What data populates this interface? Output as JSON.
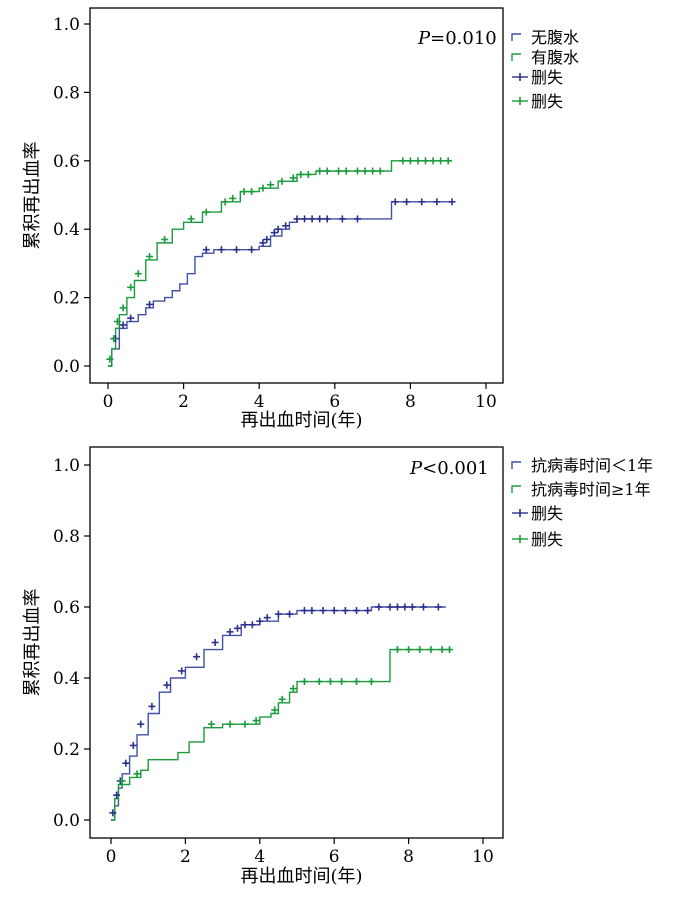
{
  "chart_data": [
    {
      "type": "line",
      "title": "",
      "xlabel": "再出血时间(年)",
      "ylabel": "累积再出血率",
      "xlim": [
        0,
        10
      ],
      "ylim": [
        0,
        1
      ],
      "x_ticks": [
        "0",
        "2",
        "4",
        "6",
        "8",
        "10"
      ],
      "y_ticks": [
        "0.0",
        "0.2",
        "0.4",
        "0.6",
        "0.8",
        "1.0"
      ],
      "annotation": {
        "prefix": "P",
        "text": "=0.010"
      },
      "legend_position": "right",
      "legend": [
        {
          "label": "无腹水",
          "kind": "line",
          "color": "#3f51a8"
        },
        {
          "label": "有腹水",
          "kind": "line",
          "color": "#1a9b3c"
        },
        {
          "label": "删失",
          "kind": "censor",
          "color": "#2b2f8f"
        },
        {
          "label": "删失",
          "kind": "censor",
          "color": "#1a9b3c"
        }
      ],
      "series": [
        {
          "name": "无腹水",
          "color": "#3f51a8",
          "x": [
            0,
            0.1,
            0.3,
            0.5,
            0.8,
            1.0,
            1.2,
            1.5,
            1.7,
            1.9,
            2.1,
            2.3,
            2.5,
            2.8,
            3.2,
            3.6,
            4.0,
            4.3,
            4.6,
            4.8,
            5.0,
            5.5,
            6.0,
            6.5,
            7.0,
            7.5,
            8.0,
            8.5,
            9.1
          ],
          "y": [
            0,
            0.05,
            0.11,
            0.13,
            0.15,
            0.17,
            0.19,
            0.2,
            0.22,
            0.24,
            0.27,
            0.32,
            0.33,
            0.34,
            0.34,
            0.34,
            0.35,
            0.38,
            0.4,
            0.42,
            0.43,
            0.43,
            0.43,
            0.43,
            0.43,
            0.48,
            0.48,
            0.48,
            0.48
          ]
        },
        {
          "name": "有腹水",
          "color": "#1a9b3c",
          "x": [
            0,
            0.1,
            0.2,
            0.3,
            0.5,
            0.7,
            1.0,
            1.3,
            1.7,
            2.0,
            2.5,
            3.0,
            3.5,
            4.0,
            4.5,
            5.0,
            5.5,
            6.0,
            6.5,
            7.0,
            7.5,
            8.0,
            8.5,
            9.1
          ],
          "y": [
            0,
            0.05,
            0.11,
            0.15,
            0.2,
            0.25,
            0.31,
            0.36,
            0.4,
            0.42,
            0.45,
            0.48,
            0.51,
            0.52,
            0.54,
            0.56,
            0.57,
            0.57,
            0.57,
            0.57,
            0.6,
            0.6,
            0.6,
            0.6
          ]
        }
      ],
      "censored": [
        {
          "series": "无腹水",
          "x": [
            0.2,
            0.4,
            0.6,
            1.1,
            2.6,
            3.0,
            3.4,
            3.8,
            4.1,
            4.2,
            4.4,
            4.5,
            4.7,
            5.0,
            5.2,
            5.4,
            5.6,
            5.8,
            6.2,
            6.6,
            7.6,
            7.9,
            8.3,
            8.7,
            9.1
          ],
          "y": [
            0.08,
            0.12,
            0.14,
            0.18,
            0.34,
            0.34,
            0.34,
            0.34,
            0.36,
            0.37,
            0.39,
            0.4,
            0.41,
            0.43,
            0.43,
            0.43,
            0.43,
            0.43,
            0.43,
            0.43,
            0.48,
            0.48,
            0.48,
            0.48,
            0.48
          ]
        },
        {
          "series": "有腹水",
          "x": [
            0.05,
            0.15,
            0.25,
            0.4,
            0.6,
            0.8,
            1.1,
            1.5,
            2.2,
            2.6,
            3.1,
            3.3,
            3.6,
            3.8,
            4.1,
            4.3,
            4.6,
            4.9,
            5.1,
            5.3,
            5.6,
            5.8,
            6.1,
            6.3,
            6.6,
            6.8,
            7.0,
            7.2,
            7.8,
            8.0,
            8.2,
            8.4,
            8.6,
            8.8,
            9.0
          ],
          "y": [
            0.02,
            0.08,
            0.13,
            0.17,
            0.23,
            0.27,
            0.32,
            0.37,
            0.43,
            0.45,
            0.48,
            0.49,
            0.51,
            0.51,
            0.52,
            0.53,
            0.54,
            0.55,
            0.56,
            0.56,
            0.57,
            0.57,
            0.57,
            0.57,
            0.57,
            0.57,
            0.57,
            0.57,
            0.6,
            0.6,
            0.6,
            0.6,
            0.6,
            0.6,
            0.6
          ]
        }
      ]
    },
    {
      "type": "line",
      "title": "",
      "xlabel": "再出血时间(年)",
      "ylabel": "累积再出血率",
      "xlim": [
        0,
        10
      ],
      "ylim": [
        0,
        1
      ],
      "x_ticks": [
        "0",
        "2",
        "4",
        "6",
        "8",
        "10"
      ],
      "y_ticks": [
        "0.0",
        "0.2",
        "0.4",
        "0.6",
        "0.8",
        "1.0"
      ],
      "annotation": {
        "prefix": "P",
        "text": "<0.001"
      },
      "legend_position": "right",
      "legend": [
        {
          "label": "抗病毒时间＜1年",
          "kind": "line",
          "color": "#3f51a8"
        },
        {
          "label": "抗病毒时间≥1年",
          "kind": "line",
          "color": "#1a9b3c"
        },
        {
          "label": "删失",
          "kind": "censor",
          "color": "#2b2f8f"
        },
        {
          "label": "删失",
          "kind": "censor",
          "color": "#1a9b3c"
        }
      ],
      "series": [
        {
          "name": "抗病毒时间＜1年",
          "color": "#3f51a8",
          "x": [
            0,
            0.1,
            0.2,
            0.3,
            0.5,
            0.7,
            1.0,
            1.3,
            1.6,
            2.0,
            2.5,
            3.0,
            3.5,
            4.0,
            4.5,
            5.0,
            5.5,
            6.0,
            6.5,
            7.0,
            7.5,
            8.0,
            8.5,
            9.0
          ],
          "y": [
            0,
            0.04,
            0.09,
            0.13,
            0.18,
            0.24,
            0.3,
            0.36,
            0.4,
            0.43,
            0.48,
            0.52,
            0.55,
            0.56,
            0.58,
            0.59,
            0.59,
            0.59,
            0.59,
            0.6,
            0.6,
            0.6,
            0.6,
            0.6
          ]
        },
        {
          "name": "抗病毒时间≥1年",
          "color": "#1a9b3c",
          "x": [
            0,
            0.1,
            0.2,
            0.5,
            0.8,
            1.0,
            1.2,
            1.5,
            1.8,
            2.1,
            2.5,
            3.0,
            3.5,
            4.0,
            4.3,
            4.5,
            4.8,
            5.0,
            5.5,
            6.0,
            6.5,
            7.0,
            7.3,
            7.5,
            8.0,
            8.5,
            9.1
          ],
          "y": [
            0,
            0.06,
            0.1,
            0.12,
            0.14,
            0.17,
            0.17,
            0.17,
            0.19,
            0.22,
            0.26,
            0.27,
            0.27,
            0.29,
            0.3,
            0.33,
            0.36,
            0.39,
            0.39,
            0.39,
            0.39,
            0.39,
            0.39,
            0.48,
            0.48,
            0.48,
            0.48
          ]
        }
      ],
      "censored": [
        {
          "series": "抗病毒时间＜1年",
          "x": [
            0.05,
            0.15,
            0.25,
            0.4,
            0.6,
            0.8,
            1.1,
            1.5,
            1.9,
            2.3,
            2.8,
            3.2,
            3.4,
            3.6,
            3.8,
            4.0,
            4.2,
            4.5,
            4.8,
            5.2,
            5.4,
            5.7,
            6.0,
            6.3,
            6.6,
            6.9,
            7.2,
            7.5,
            7.7,
            7.9,
            8.1,
            8.4,
            8.8
          ],
          "y": [
            0.02,
            0.07,
            0.11,
            0.16,
            0.21,
            0.27,
            0.32,
            0.38,
            0.42,
            0.46,
            0.5,
            0.53,
            0.54,
            0.55,
            0.55,
            0.56,
            0.57,
            0.58,
            0.58,
            0.59,
            0.59,
            0.59,
            0.59,
            0.59,
            0.59,
            0.59,
            0.6,
            0.6,
            0.6,
            0.6,
            0.6,
            0.6,
            0.6
          ]
        },
        {
          "series": "抗病毒时间≥1年",
          "x": [
            0.3,
            0.7,
            2.7,
            3.2,
            3.6,
            3.9,
            4.4,
            4.6,
            4.9,
            5.2,
            5.6,
            5.9,
            6.2,
            6.6,
            7.0,
            7.7,
            8.0,
            8.3,
            8.6,
            8.9,
            9.1
          ],
          "y": [
            0.11,
            0.13,
            0.27,
            0.27,
            0.27,
            0.28,
            0.31,
            0.34,
            0.37,
            0.39,
            0.39,
            0.39,
            0.39,
            0.39,
            0.39,
            0.48,
            0.48,
            0.48,
            0.48,
            0.48,
            0.48
          ]
        }
      ]
    }
  ]
}
